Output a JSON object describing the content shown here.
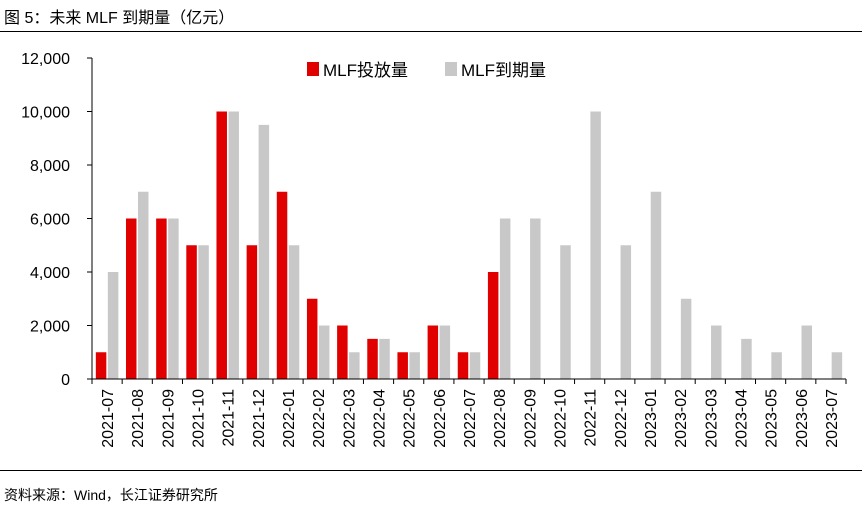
{
  "figure": {
    "title": "图 5：未来 MLF 到期量（亿元）",
    "source": "资料来源：Wind，长江证券研究所"
  },
  "colors": {
    "invest": "#e00000",
    "maturity": "#c8c8c8",
    "axis": "#000000"
  },
  "chart_data": {
    "type": "bar",
    "title": "未来 MLF 到期量（亿元）",
    "xlabel": "",
    "ylabel": "",
    "ylim": [
      0,
      12000
    ],
    "yticks": [
      0,
      2000,
      4000,
      6000,
      8000,
      10000,
      12000
    ],
    "ytick_labels": [
      "0",
      "2,000",
      "4,000",
      "6,000",
      "8,000",
      "10,000",
      "12,000"
    ],
    "legend_position": "top-right",
    "categories": [
      "2021-07",
      "2021-08",
      "2021-09",
      "2021-10",
      "2021-11",
      "2021-12",
      "2022-01",
      "2022-02",
      "2022-03",
      "2022-04",
      "2022-05",
      "2022-06",
      "2022-07",
      "2022-08",
      "2022-09",
      "2022-10",
      "2022-11",
      "2022-12",
      "2023-01",
      "2023-02",
      "2023-03",
      "2023-04",
      "2023-05",
      "2023-06",
      "2023-07"
    ],
    "series": [
      {
        "name": "MLF投放量",
        "values": [
          1000,
          6000,
          6000,
          5000,
          10000,
          5000,
          7000,
          3000,
          2000,
          1500,
          1000,
          2000,
          1000,
          4000,
          null,
          null,
          null,
          null,
          null,
          null,
          null,
          null,
          null,
          null,
          null
        ]
      },
      {
        "name": "MLF到期量",
        "values": [
          4000,
          7000,
          6000,
          5000,
          10000,
          9500,
          5000,
          2000,
          1000,
          1500,
          1000,
          2000,
          1000,
          6000,
          6000,
          5000,
          10000,
          5000,
          7000,
          3000,
          2000,
          1500,
          1000,
          2000,
          1000
        ]
      }
    ]
  }
}
